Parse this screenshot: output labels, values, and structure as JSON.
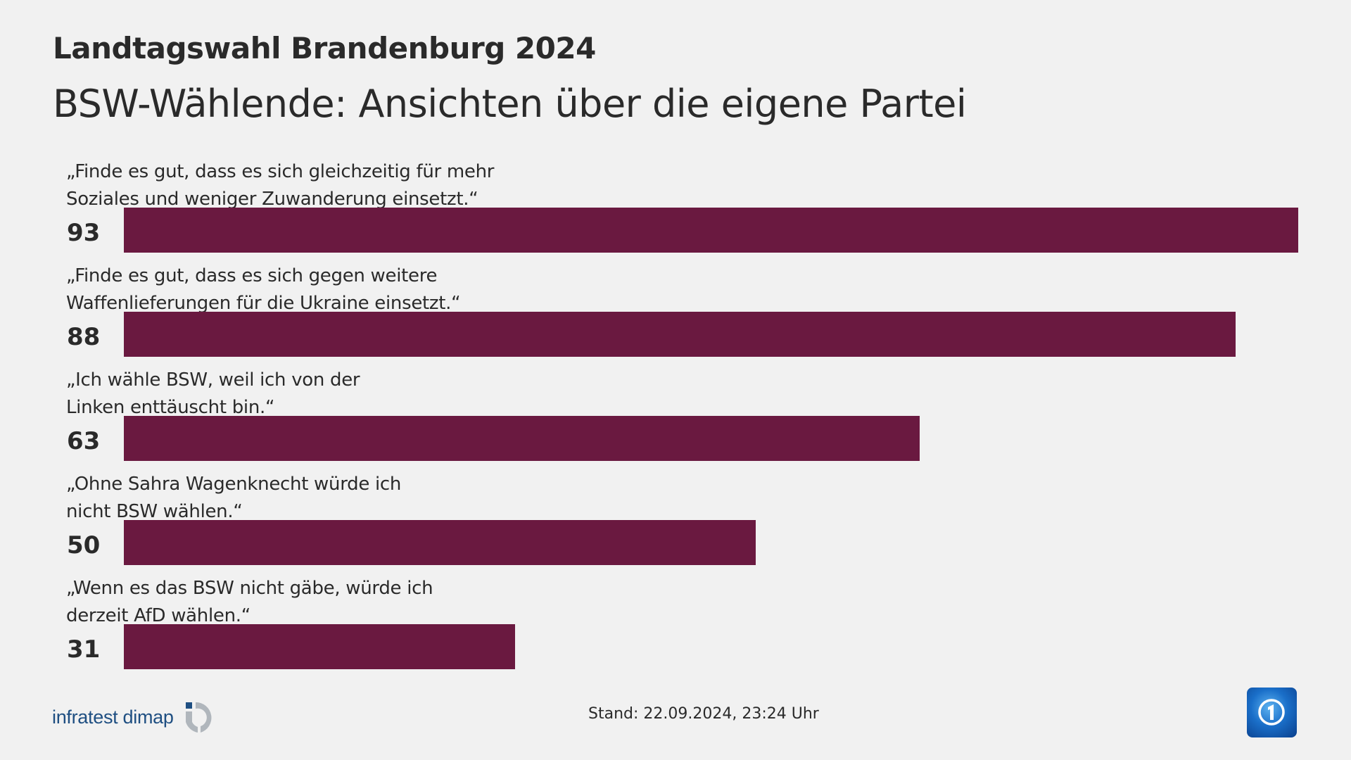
{
  "header": {
    "title": "Landtagswahl Brandenburg 2024",
    "subtitle": "BSW-Wählende: Ansichten über die eigene Partei"
  },
  "chart_data": {
    "type": "bar",
    "orientation": "horizontal",
    "categories": [
      "„Finde es gut, dass es sich gleichzeitig für mehr\nSoziales und weniger Zuwanderung einsetzt.“",
      "„Finde es gut, dass es sich gegen weitere\nWaffenlieferungen für die Ukraine einsetzt.“",
      "„Ich wähle BSW, weil ich von der\nLinken enttäuscht bin.“",
      "„Ohne Sahra Wagenknecht würde ich\nnicht BSW wählen.“",
      "„Wenn es das BSW nicht gäbe, würde ich\nderzeit AfD wählen.“"
    ],
    "values": [
      93,
      88,
      63,
      50,
      31
    ],
    "xlim": [
      0,
      100
    ],
    "grid": false,
    "bar_color": "#6a1940"
  },
  "footer": {
    "source_logo": "infratest dimap",
    "stand": "Stand:  22.09.2024, 23:24 Uhr",
    "broadcaster_icon": "tagesschau-logo-icon"
  }
}
